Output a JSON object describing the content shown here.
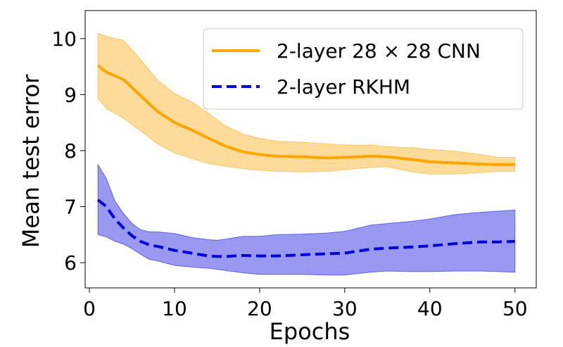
{
  "chart_data": {
    "type": "line",
    "title": "",
    "xlabel": "Epochs",
    "ylabel": "Mean test error",
    "xlim": [
      -0.5,
      52.5
    ],
    "ylim": [
      5.55,
      10.5
    ],
    "xticks": [
      0,
      10,
      20,
      30,
      40,
      50
    ],
    "yticks": [
      6,
      7,
      8,
      9,
      10
    ],
    "xtick_labels": [
      "0",
      "10",
      "20",
      "30",
      "40",
      "50"
    ],
    "ytick_labels": [
      "6",
      "7",
      "8",
      "9",
      "10"
    ],
    "grid": false,
    "legend_position": "top-right",
    "series": [
      {
        "name": "2-layer 28 × 28 CNN",
        "color": "#ffa500",
        "style": "solid",
        "x": [
          1,
          2,
          4,
          6,
          8,
          10,
          12,
          14,
          16,
          18,
          20,
          22,
          25,
          28,
          30,
          33,
          35,
          38,
          40,
          43,
          46,
          48,
          50
        ],
        "mean": [
          9.52,
          9.4,
          9.27,
          8.98,
          8.7,
          8.5,
          8.37,
          8.22,
          8.08,
          7.98,
          7.93,
          7.9,
          7.89,
          7.87,
          7.88,
          7.9,
          7.89,
          7.84,
          7.8,
          7.78,
          7.76,
          7.75,
          7.75
        ],
        "lower": [
          8.93,
          8.75,
          8.58,
          8.35,
          8.12,
          7.96,
          7.86,
          7.77,
          7.72,
          7.68,
          7.65,
          7.63,
          7.62,
          7.63,
          7.66,
          7.7,
          7.71,
          7.62,
          7.58,
          7.58,
          7.61,
          7.63,
          7.63
        ],
        "upper": [
          10.1,
          10.04,
          9.97,
          9.63,
          9.26,
          9.02,
          8.87,
          8.67,
          8.44,
          8.3,
          8.22,
          8.17,
          8.15,
          8.12,
          8.1,
          8.1,
          8.07,
          8.05,
          8.02,
          7.99,
          7.93,
          7.88,
          7.88
        ]
      },
      {
        "name": "2-layer RKHM",
        "color": "#0000dd",
        "style": "dashed",
        "x": [
          1,
          2,
          3,
          4,
          5,
          6,
          7,
          8,
          10,
          12,
          14,
          15,
          16,
          18,
          20,
          22,
          25,
          28,
          30,
          33,
          35,
          38,
          40,
          43,
          46,
          48,
          50
        ],
        "mean": [
          7.12,
          7.0,
          6.78,
          6.62,
          6.48,
          6.38,
          6.32,
          6.29,
          6.22,
          6.17,
          6.12,
          6.11,
          6.11,
          6.13,
          6.12,
          6.12,
          6.14,
          6.16,
          6.17,
          6.24,
          6.26,
          6.28,
          6.3,
          6.34,
          6.37,
          6.37,
          6.38
        ],
        "lower": [
          6.5,
          6.46,
          6.38,
          6.33,
          6.25,
          6.15,
          6.06,
          6.03,
          5.95,
          5.92,
          5.9,
          5.88,
          5.86,
          5.82,
          5.79,
          5.79,
          5.79,
          5.78,
          5.78,
          5.83,
          5.85,
          5.84,
          5.84,
          5.85,
          5.85,
          5.84,
          5.83
        ],
        "upper": [
          7.75,
          7.5,
          7.1,
          6.88,
          6.7,
          6.59,
          6.55,
          6.55,
          6.52,
          6.45,
          6.41,
          6.4,
          6.42,
          6.47,
          6.47,
          6.5,
          6.51,
          6.53,
          6.56,
          6.67,
          6.7,
          6.74,
          6.78,
          6.86,
          6.9,
          6.92,
          6.94
        ]
      }
    ]
  }
}
